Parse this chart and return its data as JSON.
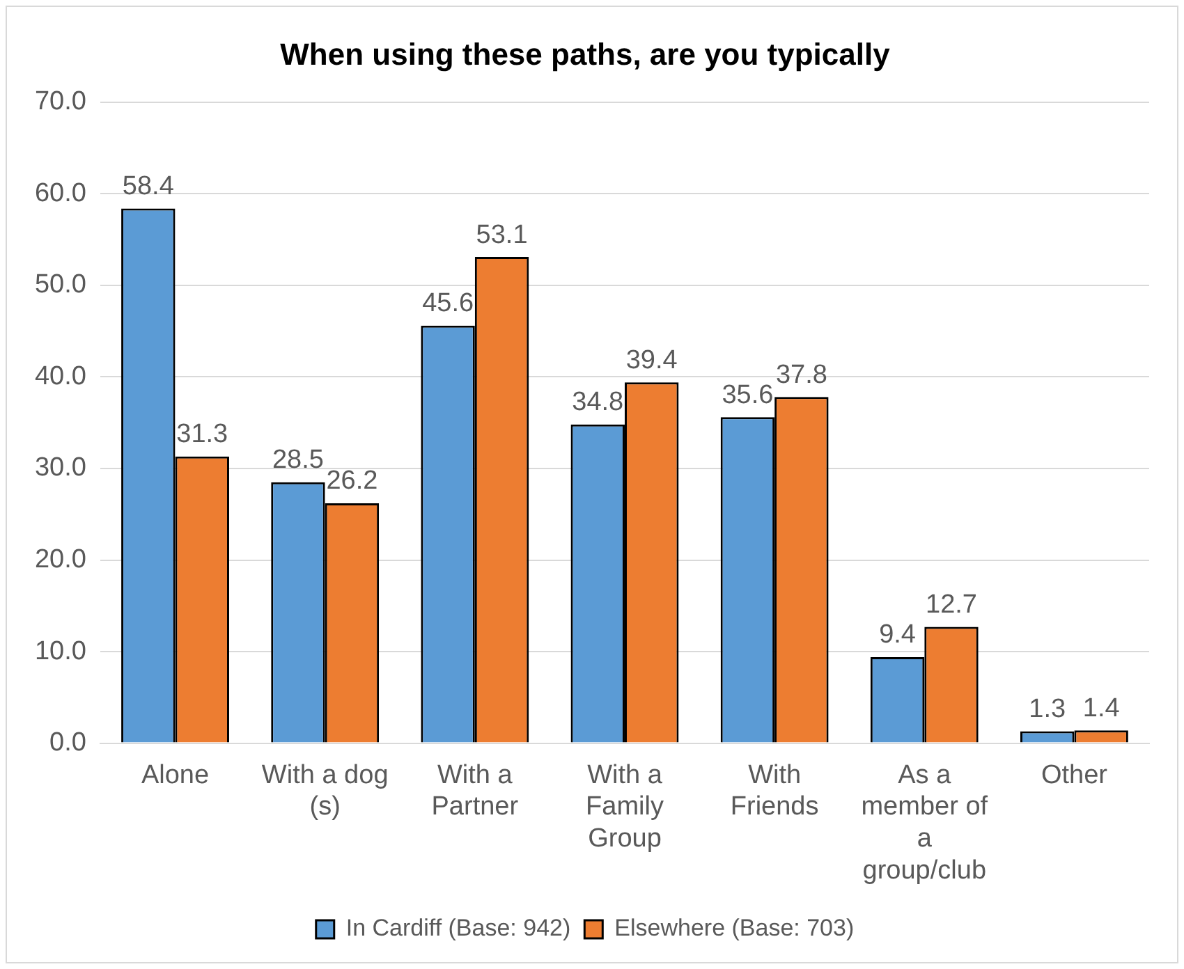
{
  "chart_data": {
    "type": "bar",
    "title": "When using these paths, are you typically",
    "categories": [
      "Alone",
      "With a dog (s)",
      "With a Partner",
      "With a Family Group",
      "With Friends",
      "As a member of a group/club",
      "Other"
    ],
    "series": [
      {
        "name": "In Cardiff (Base: 942)",
        "color": "#5b9bd5",
        "values": [
          58.4,
          28.5,
          45.6,
          34.8,
          35.6,
          9.4,
          1.3
        ]
      },
      {
        "name": "Elsewhere (Base: 703)",
        "color": "#ed7d31",
        "values": [
          31.3,
          26.2,
          53.1,
          39.4,
          37.8,
          12.7,
          1.4
        ]
      }
    ],
    "ylim": [
      0,
      70
    ],
    "yticks": [
      {
        "value": 0,
        "label": "0.0"
      },
      {
        "value": 10,
        "label": "10.0"
      },
      {
        "value": 20,
        "label": "20.0"
      },
      {
        "value": 30,
        "label": "30.0"
      },
      {
        "value": 40,
        "label": "40.0"
      },
      {
        "value": 50,
        "label": "50.0"
      },
      {
        "value": 60,
        "label": "60.0"
      },
      {
        "value": 70,
        "label": "70.0"
      }
    ],
    "grid": "y",
    "legend": "bottom",
    "data_labels": true
  }
}
